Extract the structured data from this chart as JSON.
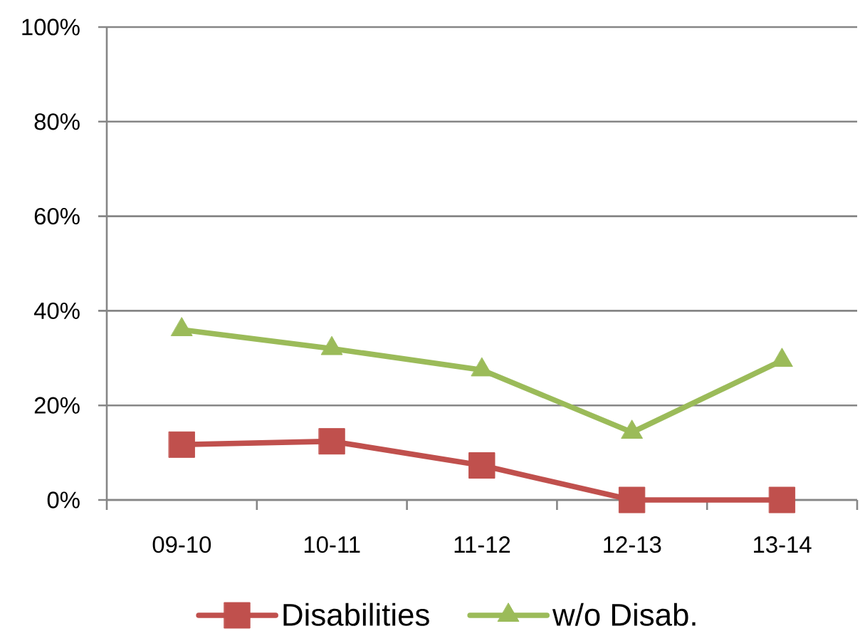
{
  "chart_data": {
    "type": "line",
    "categories": [
      "09-10",
      "10-11",
      "11-12",
      "12-13",
      "13-14"
    ],
    "series": [
      {
        "name": "Disabilities",
        "color": "#c0504d",
        "marker": "square",
        "values": [
          11.7,
          12.4,
          7.3,
          0,
          0
        ]
      },
      {
        "name": "w/o Disab.",
        "color": "#9bbb59",
        "marker": "triangle",
        "values": [
          36,
          32,
          27.5,
          14.3,
          29.5
        ]
      }
    ],
    "ylim": [
      0,
      100
    ],
    "yticks": [
      {
        "value": 0,
        "label": "0%"
      },
      {
        "value": 20,
        "label": "20%"
      },
      {
        "value": 40,
        "label": "40%"
      },
      {
        "value": 60,
        "label": "60%"
      },
      {
        "value": 80,
        "label": "80%"
      },
      {
        "value": 100,
        "label": "100%"
      }
    ],
    "grid": "y",
    "legend": "bottom"
  }
}
